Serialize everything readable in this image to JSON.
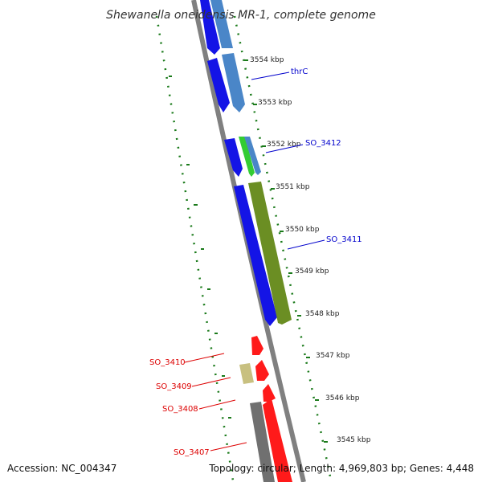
{
  "title": "Shewanella oneidensis MR-1, complete genome",
  "footer": {
    "accession": "Accession: NC_004347",
    "stats": "Topology: circular; Length: 4,969,803 bp; Genes: 4,448"
  },
  "colors": {
    "backbone": "#808080",
    "forward_cds": "#1414e6",
    "forward_cds_frame2": "#4a86c8",
    "reverse_cds": "#ff1a1a",
    "gc_skew_tick": "#1a7a1a",
    "label_forward": "#0000cc",
    "label_reverse": "#dd0000",
    "feature_green": "#33cc33",
    "feature_olive": "#6b8e23",
    "feature_khaki": "#c8c080",
    "feature_grey": "#707070"
  },
  "scale": {
    "unit": "kbp",
    "ticks": [
      {
        "label": "3554 kbp"
      },
      {
        "label": "3553 kbp"
      },
      {
        "label": "3552 kbp"
      },
      {
        "label": "3551 kbp"
      },
      {
        "label": "3550 kbp"
      },
      {
        "label": "3549 kbp"
      },
      {
        "label": "3548 kbp"
      },
      {
        "label": "3547 kbp"
      },
      {
        "label": "3546 kbp"
      },
      {
        "label": "3545 kbp"
      }
    ]
  },
  "gene_labels": {
    "forward": [
      "thrC",
      "SO_3412",
      "SO_3411"
    ],
    "reverse": [
      "SO_3410",
      "SO_3409",
      "SO_3408",
      "SO_3407"
    ]
  }
}
